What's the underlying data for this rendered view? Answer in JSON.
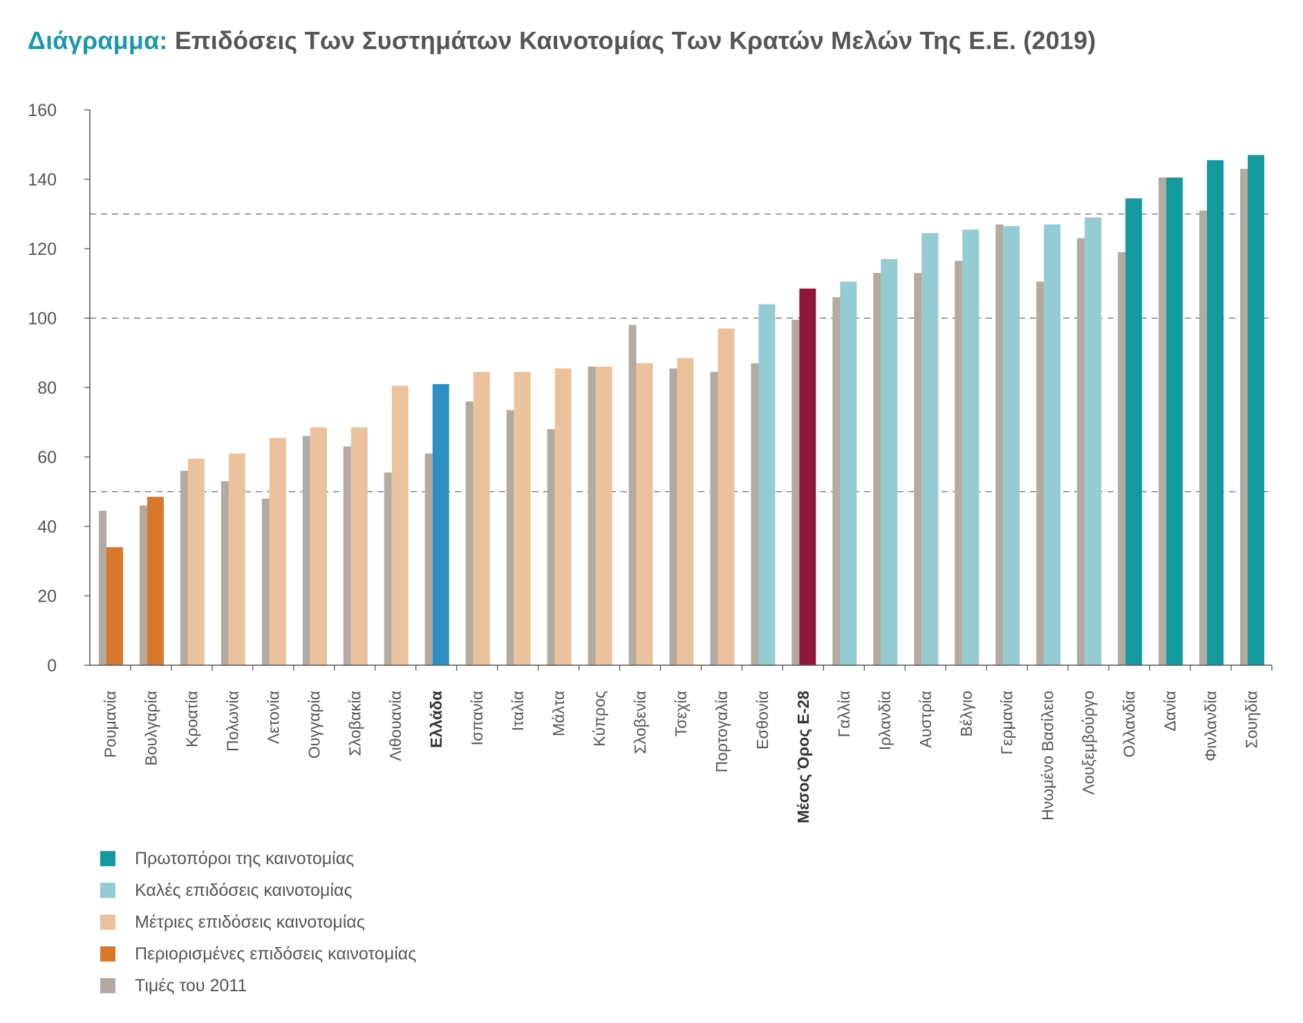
{
  "title": {
    "lead": "Διάγραμμα:",
    "rest": "Επιδόσεις Των Συστημάτων Καινοτομίας Των Κρατών Μελών Της Ε.Ε. (2019)"
  },
  "chart_data": {
    "type": "bar",
    "ylim": [
      0,
      160
    ],
    "yticks": [
      0,
      20,
      40,
      60,
      80,
      100,
      120,
      140,
      160
    ],
    "reference_lines": [
      50,
      100,
      130
    ],
    "grid": false,
    "legend_position": "bottom-left",
    "categories": [
      "Ρουμανία",
      "Βουλγαρία",
      "Κροατία",
      "Πολωνία",
      "Λετονία",
      "Ουγγαρία",
      "Σλοβακία",
      "Λιθουανία",
      "Ελλάδα",
      "Ισπανία",
      "Ιταλία",
      "Μάλτα",
      "Κύπρος",
      "Σλοβενία",
      "Τσεχία",
      "Πορτογαλία",
      "Εσθονία",
      "Μέσος Όρος Ε-28",
      "Γαλλία",
      "Ιρλανδία",
      "Αυστρία",
      "Βέλγιο",
      "Γερμανία",
      "Ηνωμένο Βασίλειο",
      "Λουξεμβούργο",
      "Ολλανδία",
      "Δανία",
      "Φινλανδία",
      "Σουηδία"
    ],
    "bold_categories": [
      "Ελλάδα",
      "Μέσος Όρος Ε-28"
    ],
    "series": [
      {
        "name": "Τιμές του 2011",
        "values": [
          44.5,
          46,
          56,
          53,
          48,
          66,
          63,
          55.5,
          61,
          76,
          73.5,
          68,
          86,
          98,
          85.5,
          84.5,
          87,
          99.5,
          106,
          113,
          113,
          116.5,
          127,
          110.5,
          123,
          119,
          140.5,
          131,
          143
        ]
      },
      {
        "name": "2019",
        "values": [
          34,
          48.5,
          59.5,
          61,
          65.5,
          68.5,
          68.5,
          80.5,
          81,
          84.5,
          84.5,
          85.5,
          86,
          87,
          88.5,
          97,
          104,
          108.5,
          110.5,
          117,
          124.5,
          125.5,
          126.5,
          127,
          129,
          134.5,
          140.5,
          145.5,
          147
        ],
        "groups": [
          "limited",
          "limited",
          "moderate",
          "moderate",
          "moderate",
          "moderate",
          "moderate",
          "moderate",
          "greece",
          "moderate",
          "moderate",
          "moderate",
          "moderate",
          "moderate",
          "moderate",
          "moderate",
          "strong",
          "average",
          "strong",
          "strong",
          "strong",
          "strong",
          "strong",
          "strong",
          "strong",
          "leader",
          "leader",
          "leader",
          "leader"
        ]
      }
    ],
    "colors": {
      "leader": "#14999f",
      "strong": "#95cbd3",
      "moderate": "#ecc29c",
      "limited": "#d9772b",
      "greece": "#2e8fc5",
      "average": "#8f1739",
      "y2011": "#b3aaa1",
      "axis": "#555555",
      "refline": "#6a6a6a"
    }
  },
  "legend": [
    {
      "label": "Πρωτοπόροι της καινοτομίας",
      "color": "#14999f"
    },
    {
      "label": "Καλές επιδόσεις καινοτομίας",
      "color": "#95cbd3"
    },
    {
      "label": "Μέτριες επιδόσεις καινοτομίας",
      "color": "#ecc29c"
    },
    {
      "label": "Περιορισμένες επιδόσεις καινοτομίας",
      "color": "#d9772b"
    },
    {
      "label": "Τιμές του 2011",
      "color": "#b3aaa1"
    }
  ]
}
